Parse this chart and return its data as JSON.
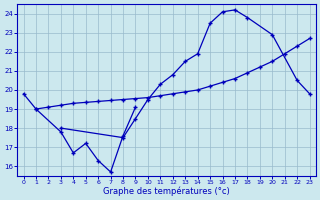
{
  "xlabel": "Graphe des températures (°c)",
  "bg_color": "#cce8ee",
  "line_color": "#0000bb",
  "grid_color": "#99bbcc",
  "xlim": [
    -0.5,
    23.5
  ],
  "ylim": [
    15.5,
    24.5
  ],
  "xticks": [
    0,
    1,
    2,
    3,
    4,
    5,
    6,
    7,
    8,
    9,
    10,
    11,
    12,
    13,
    14,
    15,
    16,
    17,
    18,
    19,
    20,
    21,
    22,
    23
  ],
  "yticks": [
    16,
    17,
    18,
    19,
    20,
    21,
    22,
    23,
    24
  ],
  "line1_x": [
    0,
    1,
    3,
    4,
    5,
    6,
    7,
    8,
    9
  ],
  "line1_y": [
    19.8,
    19.0,
    17.8,
    16.7,
    17.2,
    16.3,
    15.7,
    17.6,
    19.1
  ],
  "line2_x": [
    3,
    8,
    9,
    10,
    11,
    12,
    13,
    14,
    15,
    16,
    17,
    18,
    20,
    22,
    23
  ],
  "line2_y": [
    18.0,
    17.5,
    18.5,
    19.5,
    20.3,
    20.8,
    21.5,
    21.9,
    23.5,
    24.1,
    24.2,
    23.8,
    22.9,
    20.5,
    19.8
  ],
  "line3_x": [
    1,
    2,
    3,
    4,
    5,
    6,
    7,
    8,
    9,
    10,
    11,
    12,
    13,
    14,
    15,
    16,
    17,
    18,
    19,
    20,
    21,
    22,
    23
  ],
  "line3_y": [
    19.0,
    19.1,
    19.2,
    19.3,
    19.35,
    19.4,
    19.45,
    19.5,
    19.55,
    19.6,
    19.7,
    19.8,
    19.9,
    20.0,
    20.2,
    20.4,
    20.6,
    20.9,
    21.2,
    21.5,
    21.9,
    22.3,
    22.7
  ]
}
